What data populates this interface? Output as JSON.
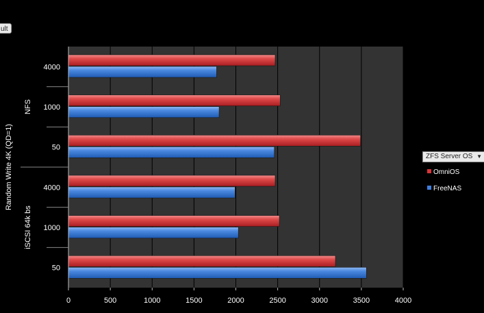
{
  "pivot": {
    "field_chip_label": "ult"
  },
  "legend": {
    "header": "ZFS Server OS",
    "items": [
      {
        "label": "OmniOS",
        "color": "#d9353a"
      },
      {
        "label": "FreeNAS",
        "color": "#3f7fdc"
      }
    ]
  },
  "chart_data": {
    "type": "bar",
    "orientation": "horizontal",
    "title": "",
    "xlabel": "",
    "ylabel": "Random Write 4K (QD=1)",
    "xlim": [
      0,
      4000
    ],
    "xticks": [
      0,
      500,
      1000,
      1500,
      2000,
      2500,
      3000,
      3500,
      4000
    ],
    "grid": true,
    "legend_position": "right",
    "groups": [
      {
        "label": "NFS",
        "categories": [
          "4000",
          "1000",
          "50"
        ]
      },
      {
        "label": "iSCSI 64k bs",
        "categories": [
          "4000",
          "1000",
          "50"
        ]
      }
    ],
    "categories": [
      "NFS 4000",
      "NFS 1000",
      "NFS 50",
      "iSCSI 64k bs 4000",
      "iSCSI 64k bs 1000",
      "iSCSI 64k bs 50"
    ],
    "series": [
      {
        "name": "OmniOS",
        "color": "#d9353a",
        "values": [
          2470,
          2530,
          3490,
          2470,
          2520,
          3190
        ]
      },
      {
        "name": "FreeNAS",
        "color": "#3f7fdc",
        "values": [
          1770,
          1800,
          2460,
          1990,
          2030,
          3560
        ]
      }
    ]
  }
}
